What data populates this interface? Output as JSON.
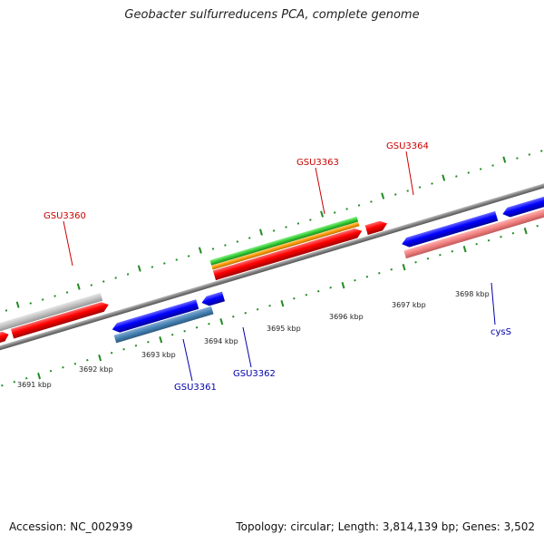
{
  "title": "Geobacter sulfurreducens PCA, complete genome",
  "footer": {
    "accession": "Accession: NC_002939",
    "stats": "Topology: circular; Length: 3,814,139 bp; Genes: 3,502"
  },
  "ticks": [
    "3691 kbp",
    "3692 kbp",
    "3693 kbp",
    "3694 kbp",
    "3695 kbp",
    "3696 kbp",
    "3697 kbp",
    "3698 kbp"
  ],
  "gene_labels": {
    "forward": [
      "GSU3360",
      "GSU3363",
      "GSU3364"
    ],
    "reverse": [
      "GSU3361",
      "GSU3362",
      "cysS"
    ]
  },
  "colors": {
    "forward_cds": "#ff0000",
    "reverse_cds": "#0000ff",
    "forward_label": "#cc0000",
    "reverse_label": "#0000aa",
    "pseudo_gene": "#c0c0c0",
    "reverse_feature_a": "#4682b4",
    "reverse_feature_b": "#f08080",
    "feature_green": "#33cc33",
    "feature_orange": "#ff9900",
    "backbone": "#808080",
    "tick": "#228b22"
  }
}
